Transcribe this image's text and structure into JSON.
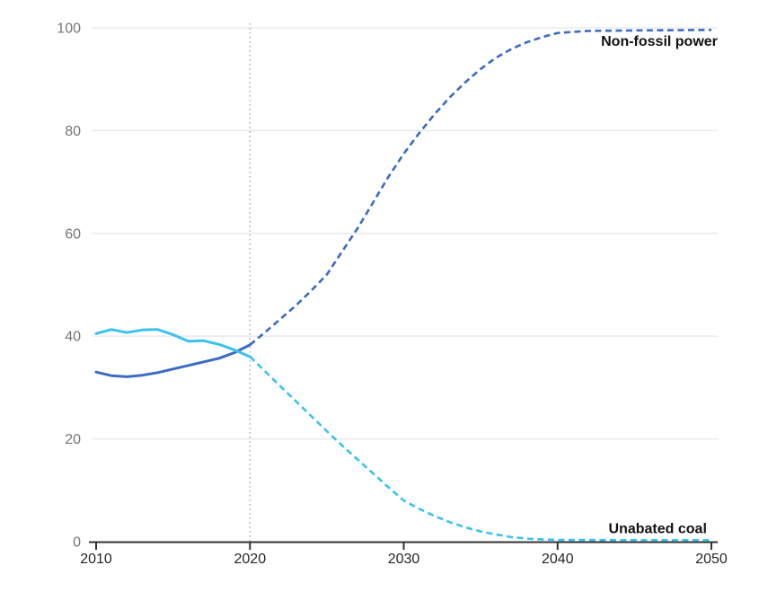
{
  "chart_data": {
    "type": "line",
    "title": "",
    "subtitle": "",
    "xlabel": "",
    "ylabel": "",
    "xlim": [
      2010,
      2050
    ],
    "ylim": [
      0,
      100
    ],
    "xticks": [
      2010,
      2020,
      2030,
      2040,
      2050
    ],
    "yticks": [
      0,
      20,
      40,
      60,
      80,
      100
    ],
    "grid": "horizontal",
    "legend_position": "inline-end-of-line-labels",
    "divider": {
      "year": 2020,
      "style": "dotted"
    },
    "series": [
      {
        "name": "Non-fossil power",
        "slug": "non-fossil-power",
        "color": "#3b6bc5",
        "history_style": "solid",
        "projection_style": "dashed",
        "history": [
          [
            2010,
            33.0
          ],
          [
            2011,
            32.3
          ],
          [
            2012,
            32.1
          ],
          [
            2013,
            32.4
          ],
          [
            2014,
            32.9
          ],
          [
            2015,
            33.6
          ],
          [
            2016,
            34.3
          ],
          [
            2017,
            35.0
          ],
          [
            2018,
            35.7
          ],
          [
            2019,
            36.8
          ],
          [
            2020,
            38.3
          ]
        ],
        "projection": [
          [
            2020,
            38.3
          ],
          [
            2021,
            40.8
          ],
          [
            2022,
            43.4
          ],
          [
            2023,
            46.0
          ],
          [
            2024,
            48.9
          ],
          [
            2025,
            52.0
          ],
          [
            2026,
            56.5
          ],
          [
            2027,
            61.0
          ],
          [
            2028,
            66.0
          ],
          [
            2029,
            71.0
          ],
          [
            2030,
            75.5
          ],
          [
            2031,
            79.5
          ],
          [
            2032,
            83.2
          ],
          [
            2033,
            86.5
          ],
          [
            2034,
            89.4
          ],
          [
            2035,
            92.0
          ],
          [
            2036,
            94.2
          ],
          [
            2037,
            95.9
          ],
          [
            2038,
            97.2
          ],
          [
            2039,
            98.2
          ],
          [
            2040,
            99.0
          ],
          [
            2042,
            99.4
          ],
          [
            2045,
            99.5
          ],
          [
            2050,
            99.6
          ]
        ]
      },
      {
        "name": "Unabated coal",
        "slug": "unabated-coal",
        "color": "#3bc2ef",
        "history_style": "solid",
        "projection_style": "dashed",
        "history": [
          [
            2010,
            40.5
          ],
          [
            2011,
            41.3
          ],
          [
            2012,
            40.7
          ],
          [
            2013,
            41.2
          ],
          [
            2014,
            41.3
          ],
          [
            2015,
            40.3
          ],
          [
            2016,
            39.0
          ],
          [
            2017,
            39.1
          ],
          [
            2018,
            38.4
          ],
          [
            2019,
            37.3
          ],
          [
            2020,
            36.0
          ]
        ],
        "projection": [
          [
            2020,
            36.0
          ],
          [
            2021,
            33.1
          ],
          [
            2022,
            30.2
          ],
          [
            2023,
            27.3
          ],
          [
            2024,
            24.4
          ],
          [
            2025,
            21.5
          ],
          [
            2026,
            18.7
          ],
          [
            2027,
            16.0
          ],
          [
            2028,
            13.3
          ],
          [
            2029,
            10.6
          ],
          [
            2030,
            8.0
          ],
          [
            2031,
            6.4
          ],
          [
            2032,
            5.0
          ],
          [
            2033,
            3.8
          ],
          [
            2034,
            2.8
          ],
          [
            2035,
            2.0
          ],
          [
            2036,
            1.4
          ],
          [
            2037,
            0.9
          ],
          [
            2038,
            0.6
          ],
          [
            2039,
            0.45
          ],
          [
            2040,
            0.35
          ],
          [
            2045,
            0.3
          ],
          [
            2050,
            0.3
          ]
        ]
      }
    ],
    "annotations": [
      {
        "text": "Non-fossil power",
        "slug": "non-fossil-power-label",
        "year": 2050.4,
        "value": 96.5
      },
      {
        "text": "Unabated coal",
        "slug": "unabated-coal-label",
        "year": 2049.7,
        "value": 1.7
      }
    ],
    "colors": {
      "grid": "#e7e7e7",
      "axis": "#333333",
      "divider": "#adadad",
      "y_tick_label": "#757575",
      "x_tick_label": "#262626",
      "annotation": "#111111",
      "background": "#ffffff"
    }
  }
}
